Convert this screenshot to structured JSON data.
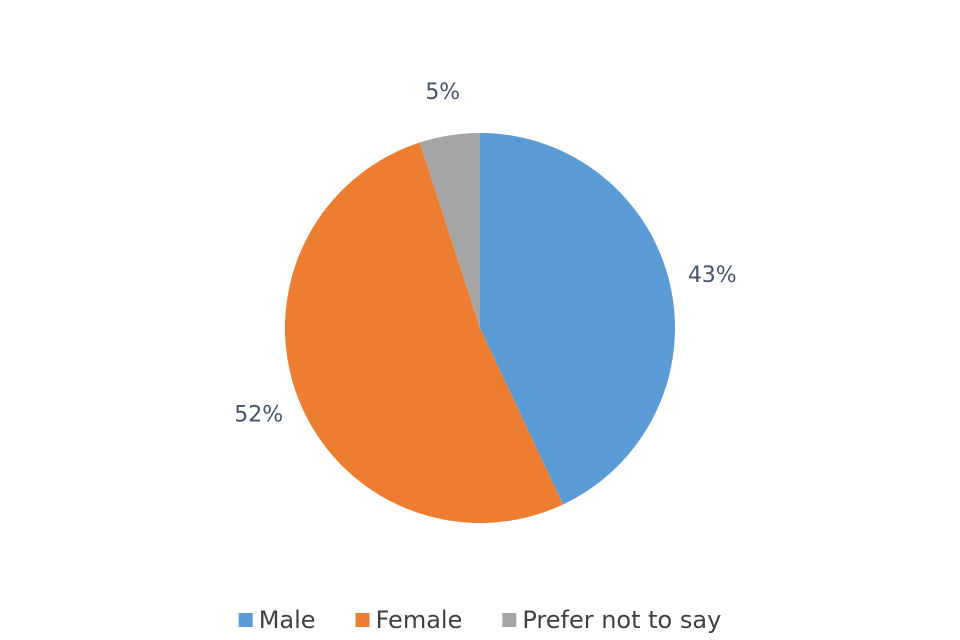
{
  "chart_data": {
    "type": "pie",
    "categories": [
      "Male",
      "Female",
      "Prefer not to say"
    ],
    "values": [
      43,
      52,
      5
    ],
    "value_labels": [
      "43%",
      "52%",
      "5%"
    ],
    "colors": [
      "#5b9bd5",
      "#ed7d31",
      "#a5a5a5"
    ],
    "legend": "bottom"
  }
}
